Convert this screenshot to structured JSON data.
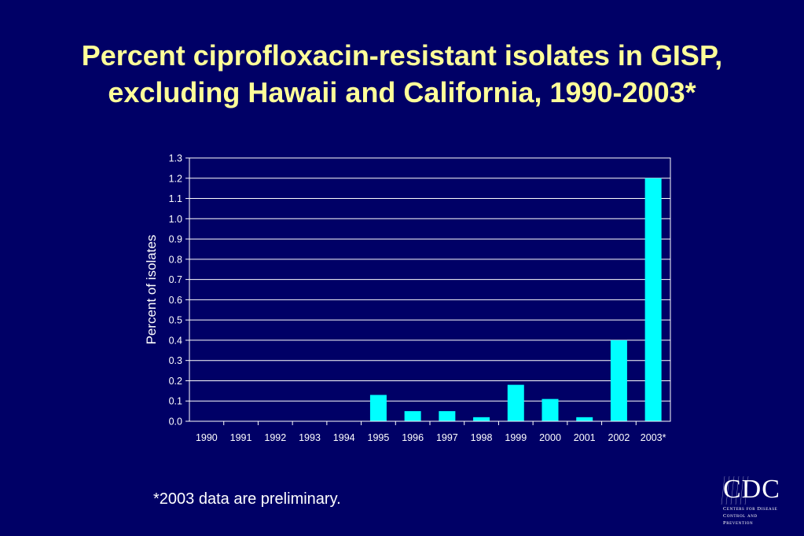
{
  "title": "Percent ciprofloxacin-resistant isolates in GISP, excluding Hawaii and California, 1990-2003*",
  "footnote": "*2003 data are preliminary.",
  "logo": {
    "letters": "CDC",
    "subtitle_line1": "Centers for Disease",
    "subtitle_line2": "Control and Prevention"
  },
  "chart_data": {
    "type": "bar",
    "categories": [
      "1990",
      "1991",
      "1992",
      "1993",
      "1994",
      "1995",
      "1996",
      "1997",
      "1998",
      "1999",
      "2000",
      "2001",
      "2002",
      "2003*"
    ],
    "values": [
      0,
      0,
      0,
      0,
      0,
      0.13,
      0.05,
      0.05,
      0.02,
      0.18,
      0.11,
      0.02,
      0.4,
      1.2
    ],
    "ylabel": "Percent of isolates",
    "xlabel": "",
    "ylim": [
      0,
      1.3
    ],
    "yticks": [
      "0.0",
      "0.1",
      "0.2",
      "0.3",
      "0.4",
      "0.5",
      "0.6",
      "0.7",
      "0.8",
      "0.9",
      "1.0",
      "1.1",
      "1.2",
      "1.3"
    ],
    "grid": true,
    "colors": {
      "bar": "#00ffff",
      "grid": "#ffffff",
      "text": "#ffffff",
      "background": "#000066"
    }
  }
}
